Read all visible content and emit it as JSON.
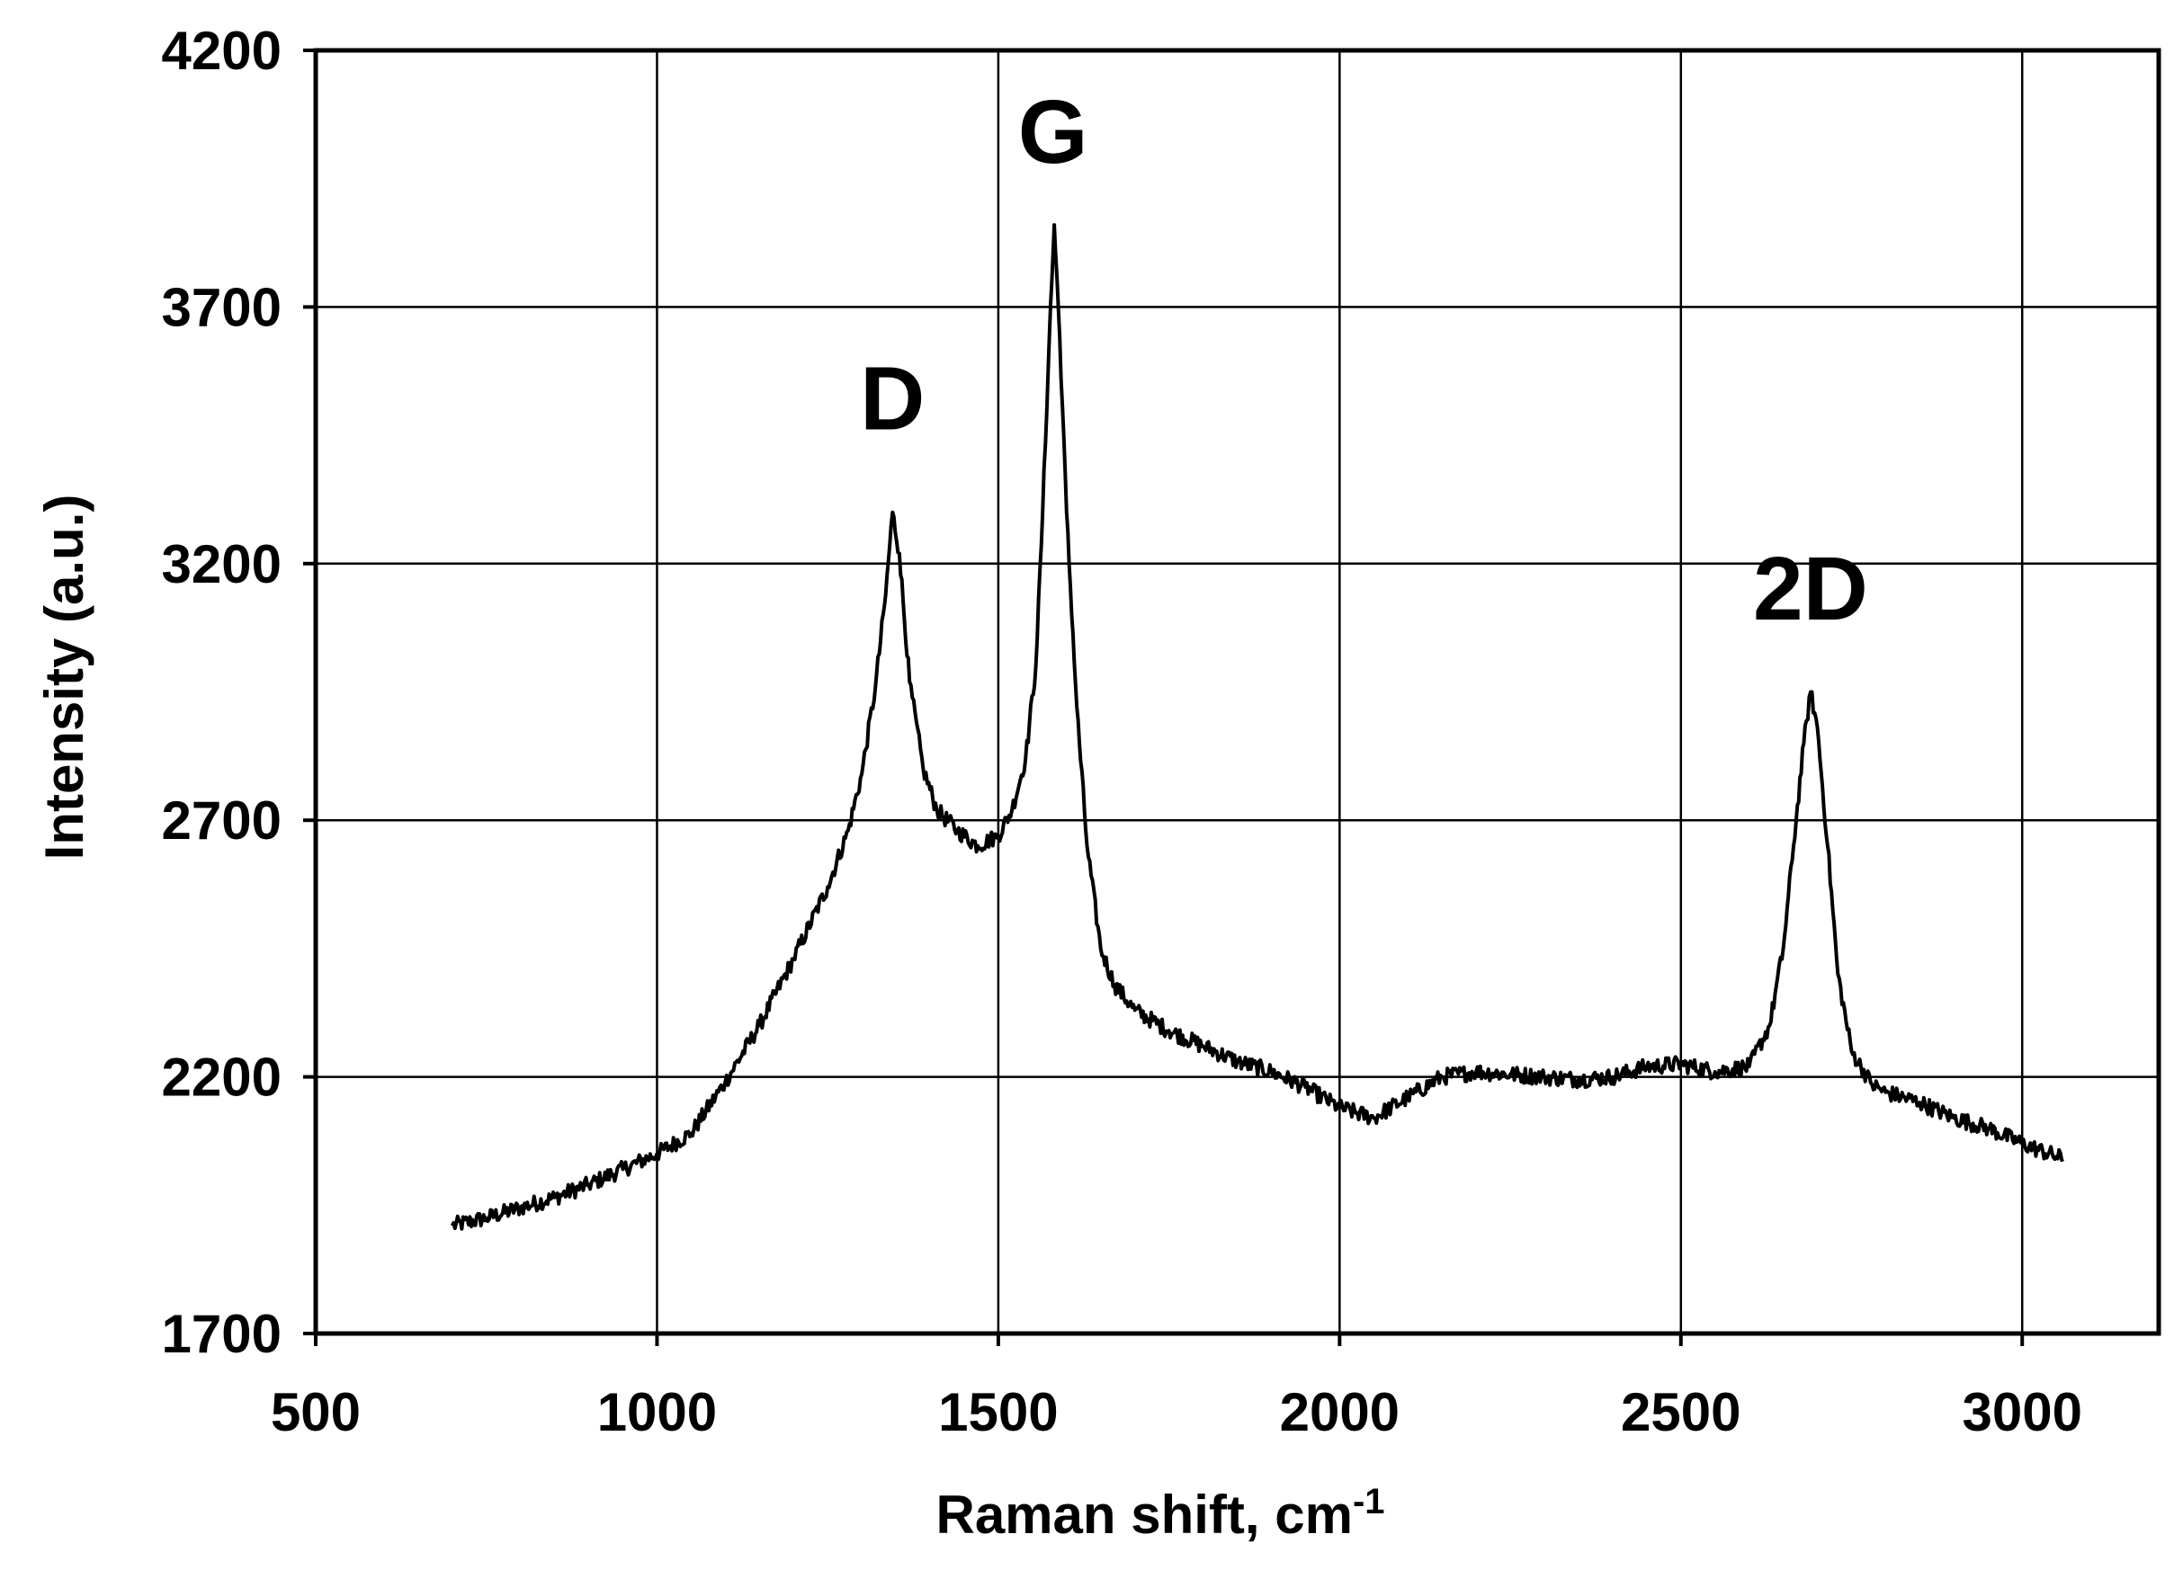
{
  "chart_data": {
    "type": "line",
    "title": "",
    "xlabel": "Raman shift, cm",
    "xlabel_superscript": "-1",
    "ylabel": "Intensity (a.u.)",
    "xlim": [
      500,
      3200
    ],
    "ylim": [
      1700,
      4200
    ],
    "x_ticks": [
      500,
      1000,
      1500,
      2000,
      2500,
      3000
    ],
    "x_tick_labels": [
      "500",
      "1000",
      "1500",
      "2000",
      "2500",
      "3000"
    ],
    "y_ticks": [
      1700,
      2200,
      2700,
      3200,
      3700,
      4200
    ],
    "y_tick_labels": [
      "1700",
      "2200",
      "2700",
      "3200",
      "3700",
      "4200"
    ],
    "grid": true,
    "legend": "none",
    "line_color": "#000000",
    "annotations": [
      {
        "text": "D",
        "x": 1345,
        "y": 3330
      },
      {
        "text": "G",
        "x": 1580,
        "y": 3850
      },
      {
        "text": "2D",
        "x": 2690,
        "y": 2960
      }
    ],
    "series": [
      {
        "x": [
          700,
          750,
          800,
          850,
          900,
          950,
          1000,
          1050,
          1100,
          1150,
          1200,
          1250,
          1280,
          1300,
          1320,
          1335,
          1345,
          1355,
          1370,
          1390,
          1410,
          1440,
          1470,
          1500,
          1520,
          1540,
          1555,
          1565,
          1575,
          1582,
          1590,
          1600,
          1615,
          1630,
          1650,
          1670,
          1700,
          1750,
          1800,
          1850,
          1900,
          1950,
          2000,
          2050,
          2100,
          2150,
          2200,
          2250,
          2300,
          2350,
          2400,
          2450,
          2500,
          2550,
          2600,
          2630,
          2650,
          2665,
          2680,
          2690,
          2700,
          2715,
          2730,
          2750,
          2780,
          2800,
          2850,
          2900,
          2950,
          3000,
          3060
        ],
        "y": [
          1910,
          1925,
          1945,
          1965,
          1990,
          2020,
          2050,
          2090,
          2190,
          2300,
          2430,
          2570,
          2680,
          2790,
          2960,
          3140,
          3300,
          3220,
          2970,
          2800,
          2720,
          2680,
          2650,
          2670,
          2720,
          2820,
          3000,
          3300,
          3650,
          3860,
          3640,
          3300,
          2920,
          2650,
          2450,
          2380,
          2330,
          2290,
          2260,
          2230,
          2210,
          2180,
          2140,
          2120,
          2160,
          2200,
          2210,
          2205,
          2200,
          2195,
          2200,
          2220,
          2225,
          2210,
          2220,
          2300,
          2450,
          2650,
          2850,
          2950,
          2880,
          2650,
          2400,
          2250,
          2185,
          2170,
          2150,
          2120,
          2100,
          2070,
          2040
        ]
      }
    ]
  }
}
